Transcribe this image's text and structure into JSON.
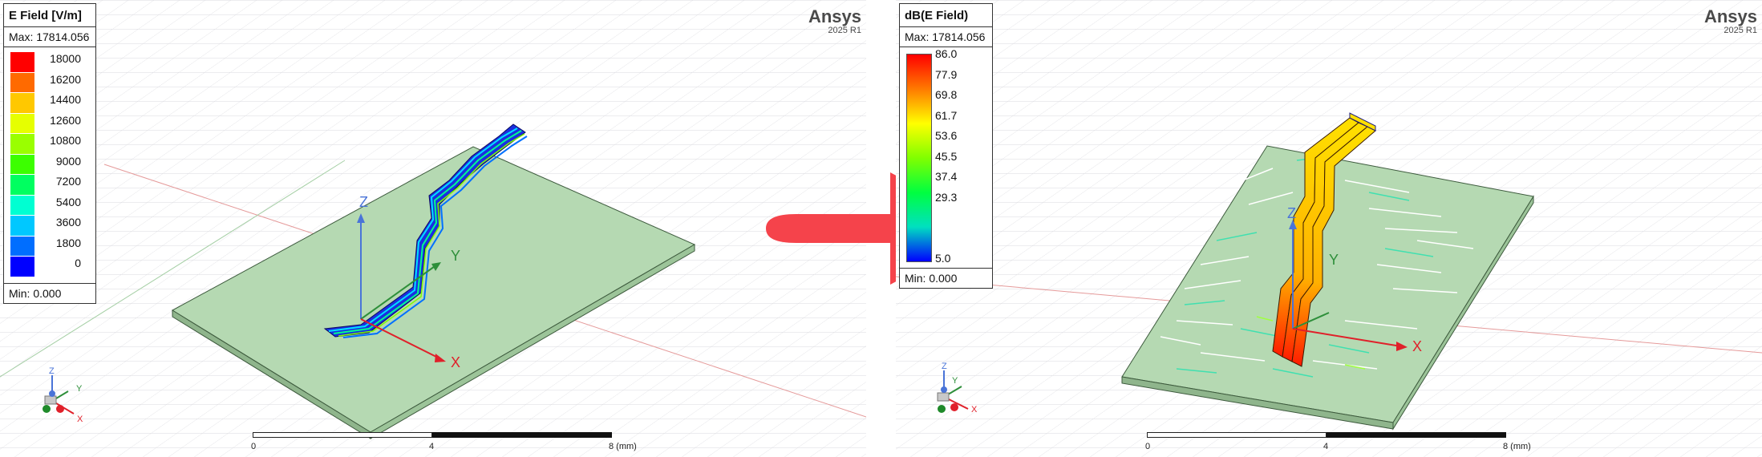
{
  "left": {
    "legend": {
      "title": "E Field [V/m]",
      "max": "Max: 17814.056",
      "min": "Min:   0.000",
      "ticks": [
        "18000",
        "16200",
        "14400",
        "12600",
        "10800",
        "9000",
        "7200",
        "5400",
        "3600",
        "1800",
        "0"
      ],
      "colors": [
        "#ff0000",
        "#ff6a00",
        "#ffc800",
        "#e6ff00",
        "#9aff00",
        "#3cff00",
        "#00ff60",
        "#00ffd2",
        "#00c8ff",
        "#006eff",
        "#0000ff"
      ]
    },
    "brand": {
      "name": "Ansys",
      "version": "2025 R1"
    },
    "axes": {
      "x": "X",
      "y": "Y",
      "z": "Z"
    },
    "triad": {
      "x": "X",
      "y": "Y",
      "z": "Z"
    },
    "scale": {
      "start": "0",
      "mid": "4",
      "end": "8 (mm)"
    }
  },
  "right": {
    "legend": {
      "title": "dB(E Field)",
      "max": "Max: 17814.056",
      "min": "Min:  0.000",
      "ticks": [
        "86.0",
        "77.9",
        "69.8",
        "61.7",
        "53.6",
        "45.5",
        "37.4",
        "29.3",
        "",
        "",
        "5.0"
      ],
      "gradient": [
        "#ff0000",
        "#ff7a00",
        "#ffff00",
        "#80ff00",
        "#00ff40",
        "#00e0c0",
        "#0000ff"
      ]
    },
    "brand": {
      "name": "Ansys",
      "version": "2025 R1"
    },
    "axes": {
      "x": "X",
      "y": "Y",
      "z": "Z"
    },
    "triad": {
      "x": "X",
      "y": "Y",
      "z": "Z"
    },
    "scale": {
      "start": "0",
      "mid": "4",
      "end": "8 (mm)"
    }
  },
  "arrow_color": "#f5434b",
  "plate_color": "#b5d9b2"
}
